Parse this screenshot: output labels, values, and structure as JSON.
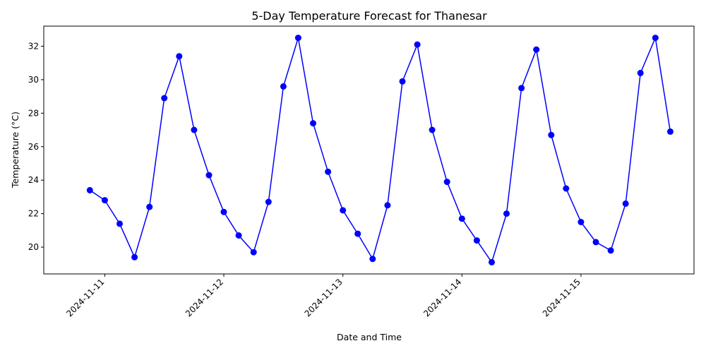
{
  "chart_data": {
    "type": "line",
    "title": "5-Day Temperature Forecast for Thanesar",
    "xlabel": "Date and Time",
    "ylabel": "Temperature (°C)",
    "x_ticks": [
      "2024-11-11",
      "2024-11-12",
      "2024-11-13",
      "2024-11-14",
      "2024-11-15"
    ],
    "y_ticks": [
      20,
      22,
      24,
      26,
      28,
      30,
      32
    ],
    "xlim": [
      "2024-11-10 11:42",
      "2024-11-15 22:47"
    ],
    "ylim": [
      18.4,
      33.2
    ],
    "grid": false,
    "color": "#0000ff",
    "marker": "circle",
    "series": [
      {
        "x": [
          "2024-11-10 21:00",
          "2024-11-11 00:00",
          "2024-11-11 03:00",
          "2024-11-11 06:00",
          "2024-11-11 09:00",
          "2024-11-11 12:00",
          "2024-11-11 15:00",
          "2024-11-11 18:00",
          "2024-11-11 21:00",
          "2024-11-12 00:00",
          "2024-11-12 03:00",
          "2024-11-12 06:00",
          "2024-11-12 09:00",
          "2024-11-12 12:00",
          "2024-11-12 15:00",
          "2024-11-12 18:00",
          "2024-11-12 21:00",
          "2024-11-13 00:00",
          "2024-11-13 03:00",
          "2024-11-13 06:00",
          "2024-11-13 09:00",
          "2024-11-13 12:00",
          "2024-11-13 15:00",
          "2024-11-13 18:00",
          "2024-11-13 21:00",
          "2024-11-14 00:00",
          "2024-11-14 03:00",
          "2024-11-14 06:00",
          "2024-11-14 09:00",
          "2024-11-14 12:00",
          "2024-11-14 15:00",
          "2024-11-14 18:00",
          "2024-11-14 21:00",
          "2024-11-15 00:00",
          "2024-11-15 03:00",
          "2024-11-15 06:00",
          "2024-11-15 09:00",
          "2024-11-15 12:00",
          "2024-11-15 15:00",
          "2024-11-15 18:00"
        ],
        "values": [
          23.4,
          22.8,
          21.4,
          19.4,
          22.4,
          28.9,
          31.4,
          27.0,
          24.3,
          22.1,
          20.7,
          19.7,
          22.7,
          29.6,
          32.5,
          27.4,
          24.5,
          22.2,
          20.8,
          19.3,
          22.5,
          29.9,
          32.1,
          27.0,
          23.9,
          21.7,
          20.4,
          19.1,
          22.0,
          29.5,
          31.8,
          26.7,
          23.5,
          21.5,
          20.3,
          19.8,
          22.6,
          30.4,
          32.5,
          26.9
        ]
      }
    ]
  }
}
